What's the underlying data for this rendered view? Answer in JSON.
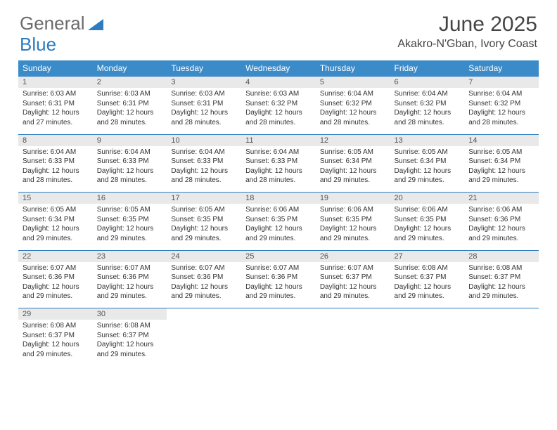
{
  "logo": {
    "text1": "General",
    "text2": "Blue"
  },
  "title": "June 2025",
  "location": "Akakro-N'Gban, Ivory Coast",
  "colors": {
    "header_bg": "#3b8bc9",
    "header_text": "#ffffff",
    "daynum_bg": "#e9e9e9",
    "border": "#2e7cc0",
    "logo_gray": "#6b6b6b",
    "logo_blue": "#2e7cc0",
    "body_text": "#333333"
  },
  "day_names": [
    "Sunday",
    "Monday",
    "Tuesday",
    "Wednesday",
    "Thursday",
    "Friday",
    "Saturday"
  ],
  "weeks": [
    [
      {
        "n": "1",
        "sr": "6:03 AM",
        "ss": "6:31 PM",
        "dl": "12 hours and 27 minutes."
      },
      {
        "n": "2",
        "sr": "6:03 AM",
        "ss": "6:31 PM",
        "dl": "12 hours and 28 minutes."
      },
      {
        "n": "3",
        "sr": "6:03 AM",
        "ss": "6:31 PM",
        "dl": "12 hours and 28 minutes."
      },
      {
        "n": "4",
        "sr": "6:03 AM",
        "ss": "6:32 PM",
        "dl": "12 hours and 28 minutes."
      },
      {
        "n": "5",
        "sr": "6:04 AM",
        "ss": "6:32 PM",
        "dl": "12 hours and 28 minutes."
      },
      {
        "n": "6",
        "sr": "6:04 AM",
        "ss": "6:32 PM",
        "dl": "12 hours and 28 minutes."
      },
      {
        "n": "7",
        "sr": "6:04 AM",
        "ss": "6:32 PM",
        "dl": "12 hours and 28 minutes."
      }
    ],
    [
      {
        "n": "8",
        "sr": "6:04 AM",
        "ss": "6:33 PM",
        "dl": "12 hours and 28 minutes."
      },
      {
        "n": "9",
        "sr": "6:04 AM",
        "ss": "6:33 PM",
        "dl": "12 hours and 28 minutes."
      },
      {
        "n": "10",
        "sr": "6:04 AM",
        "ss": "6:33 PM",
        "dl": "12 hours and 28 minutes."
      },
      {
        "n": "11",
        "sr": "6:04 AM",
        "ss": "6:33 PM",
        "dl": "12 hours and 28 minutes."
      },
      {
        "n": "12",
        "sr": "6:05 AM",
        "ss": "6:34 PM",
        "dl": "12 hours and 29 minutes."
      },
      {
        "n": "13",
        "sr": "6:05 AM",
        "ss": "6:34 PM",
        "dl": "12 hours and 29 minutes."
      },
      {
        "n": "14",
        "sr": "6:05 AM",
        "ss": "6:34 PM",
        "dl": "12 hours and 29 minutes."
      }
    ],
    [
      {
        "n": "15",
        "sr": "6:05 AM",
        "ss": "6:34 PM",
        "dl": "12 hours and 29 minutes."
      },
      {
        "n": "16",
        "sr": "6:05 AM",
        "ss": "6:35 PM",
        "dl": "12 hours and 29 minutes."
      },
      {
        "n": "17",
        "sr": "6:05 AM",
        "ss": "6:35 PM",
        "dl": "12 hours and 29 minutes."
      },
      {
        "n": "18",
        "sr": "6:06 AM",
        "ss": "6:35 PM",
        "dl": "12 hours and 29 minutes."
      },
      {
        "n": "19",
        "sr": "6:06 AM",
        "ss": "6:35 PM",
        "dl": "12 hours and 29 minutes."
      },
      {
        "n": "20",
        "sr": "6:06 AM",
        "ss": "6:35 PM",
        "dl": "12 hours and 29 minutes."
      },
      {
        "n": "21",
        "sr": "6:06 AM",
        "ss": "6:36 PM",
        "dl": "12 hours and 29 minutes."
      }
    ],
    [
      {
        "n": "22",
        "sr": "6:07 AM",
        "ss": "6:36 PM",
        "dl": "12 hours and 29 minutes."
      },
      {
        "n": "23",
        "sr": "6:07 AM",
        "ss": "6:36 PM",
        "dl": "12 hours and 29 minutes."
      },
      {
        "n": "24",
        "sr": "6:07 AM",
        "ss": "6:36 PM",
        "dl": "12 hours and 29 minutes."
      },
      {
        "n": "25",
        "sr": "6:07 AM",
        "ss": "6:36 PM",
        "dl": "12 hours and 29 minutes."
      },
      {
        "n": "26",
        "sr": "6:07 AM",
        "ss": "6:37 PM",
        "dl": "12 hours and 29 minutes."
      },
      {
        "n": "27",
        "sr": "6:08 AM",
        "ss": "6:37 PM",
        "dl": "12 hours and 29 minutes."
      },
      {
        "n": "28",
        "sr": "6:08 AM",
        "ss": "6:37 PM",
        "dl": "12 hours and 29 minutes."
      }
    ],
    [
      {
        "n": "29",
        "sr": "6:08 AM",
        "ss": "6:37 PM",
        "dl": "12 hours and 29 minutes."
      },
      {
        "n": "30",
        "sr": "6:08 AM",
        "ss": "6:37 PM",
        "dl": "12 hours and 29 minutes."
      },
      null,
      null,
      null,
      null,
      null
    ]
  ],
  "labels": {
    "sunrise": "Sunrise:",
    "sunset": "Sunset:",
    "daylight": "Daylight:"
  }
}
